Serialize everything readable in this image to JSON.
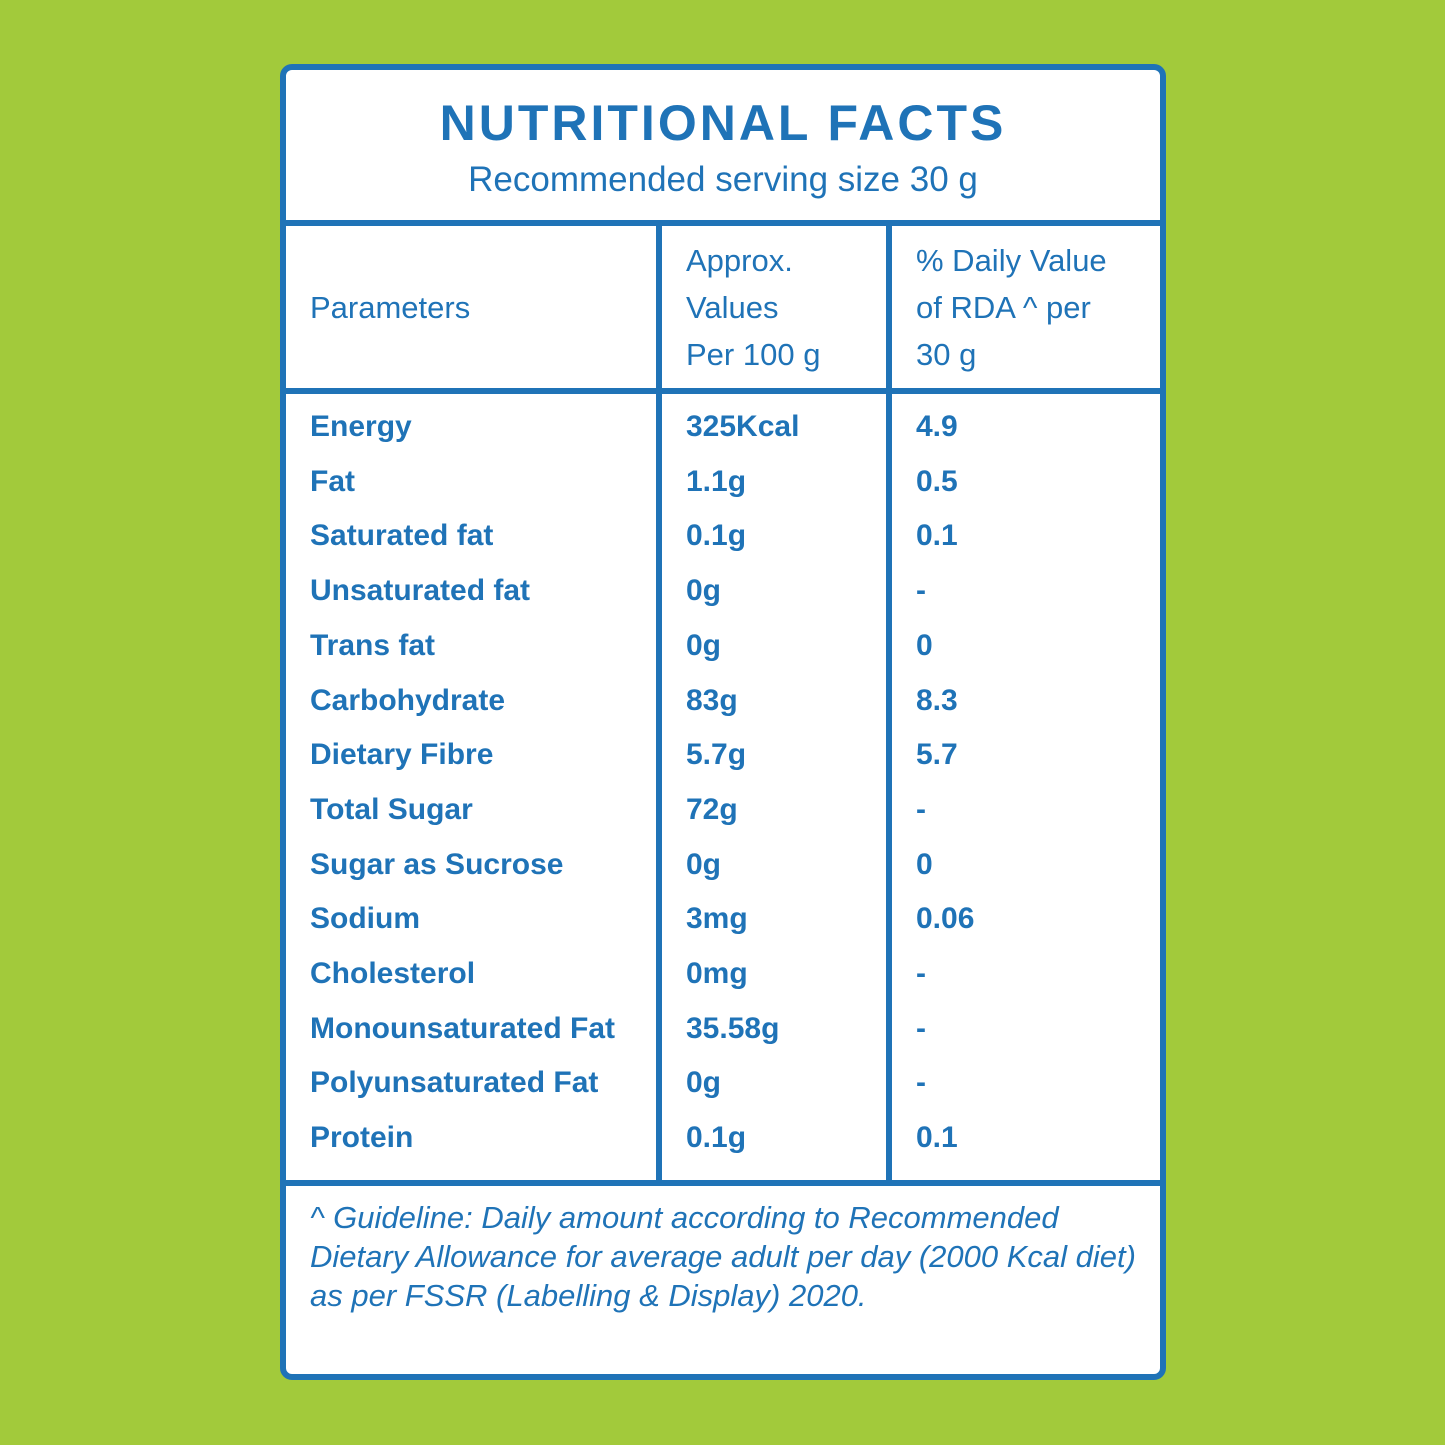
{
  "header": {
    "title": "NUTRITIONAL FACTS",
    "subtitle": "Recommended serving size 30 g"
  },
  "table": {
    "columns": [
      [
        "Parameters"
      ],
      [
        "Approx.",
        "Values",
        "Per 100 g"
      ],
      [
        "% Daily Value",
        "of RDA ^ per",
        "30 g"
      ]
    ],
    "rows": [
      [
        "Energy",
        "325Kcal",
        "4.9"
      ],
      [
        "Fat",
        "1.1g",
        "0.5"
      ],
      [
        "Saturated fat",
        "0.1g",
        "0.1"
      ],
      [
        "Unsaturated fat",
        "0g",
        "-"
      ],
      [
        "Trans fat",
        "0g",
        "0"
      ],
      [
        "Carbohydrate",
        "83g",
        "8.3"
      ],
      [
        "Dietary Fibre",
        "5.7g",
        "5.7"
      ],
      [
        "Total Sugar",
        "72g",
        "-"
      ],
      [
        "Sugar as Sucrose",
        "0g",
        "0"
      ],
      [
        "Sodium",
        "3mg",
        "0.06"
      ],
      [
        "Cholesterol",
        "0mg",
        "-"
      ],
      [
        "Monounsaturated Fat",
        "35.58g",
        "-"
      ],
      [
        "Polyunsaturated Fat",
        "0g",
        "-"
      ],
      [
        "Protein",
        "0.1g",
        "0.1"
      ]
    ]
  },
  "footnote": "^ Guideline: Daily amount according to Recommended Dietary Allowance for average adult per day (2000 Kcal diet) as per FSSR (Labelling & Display) 2020."
}
